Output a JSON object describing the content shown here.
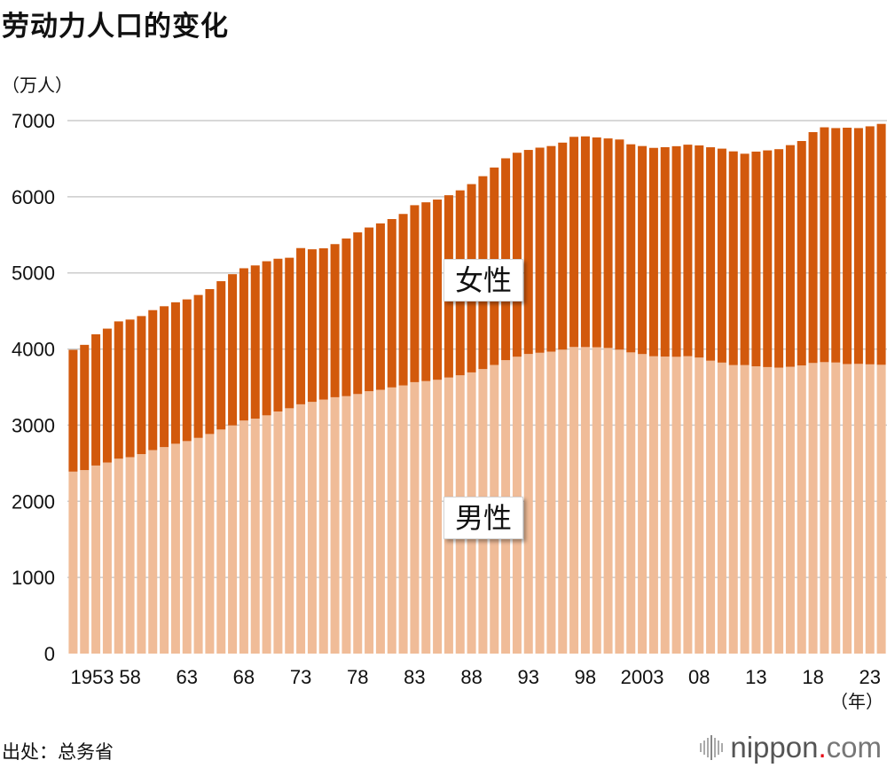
{
  "title": "劳动力人口的变化",
  "unit": "（万人）",
  "year_unit": "（年）",
  "source": "出处：总务省",
  "logo": {
    "main": "nippon",
    "dot": ".",
    "suffix": "com"
  },
  "colors": {
    "women": "#d2590c",
    "men": "#f0bc98",
    "grid": "#cccccc"
  },
  "chart_data": {
    "type": "bar",
    "stacked": true,
    "title": "劳动力人口的变化",
    "ylabel": "（万人）",
    "xlabel": "（年）",
    "ylim": [
      0,
      7000
    ],
    "yticks": [
      0,
      1000,
      2000,
      3000,
      4000,
      5000,
      6000,
      7000
    ],
    "xtick_labels": [
      "1953",
      "58",
      "63",
      "68",
      "73",
      "78",
      "83",
      "88",
      "93",
      "98",
      "2003",
      "08",
      "13",
      "18",
      "23"
    ],
    "grid": true,
    "x": [
      1953,
      1954,
      1955,
      1956,
      1957,
      1958,
      1959,
      1960,
      1961,
      1962,
      1963,
      1964,
      1965,
      1966,
      1967,
      1968,
      1969,
      1970,
      1971,
      1972,
      1973,
      1974,
      1975,
      1976,
      1977,
      1978,
      1979,
      1980,
      1981,
      1982,
      1983,
      1984,
      1985,
      1986,
      1987,
      1988,
      1989,
      1990,
      1991,
      1992,
      1993,
      1994,
      1995,
      1996,
      1997,
      1998,
      1999,
      2000,
      2001,
      2002,
      2003,
      2004,
      2005,
      2006,
      2007,
      2008,
      2009,
      2010,
      2011,
      2012,
      2013,
      2014,
      2015,
      2016,
      2017,
      2018,
      2019,
      2020,
      2021,
      2022,
      2023,
      2024
    ],
    "series": [
      {
        "name": "男性",
        "values": [
          2390,
          2410,
          2470,
          2510,
          2560,
          2580,
          2620,
          2673,
          2712,
          2756,
          2791,
          2833,
          2884,
          2943,
          2997,
          3061,
          3086,
          3129,
          3180,
          3222,
          3274,
          3306,
          3336,
          3367,
          3381,
          3409,
          3446,
          3465,
          3496,
          3522,
          3565,
          3579,
          3596,
          3626,
          3655,
          3693,
          3737,
          3791,
          3854,
          3899,
          3935,
          3951,
          3966,
          3992,
          4027,
          4026,
          4024,
          4014,
          3992,
          3956,
          3934,
          3905,
          3901,
          3898,
          3906,
          3888,
          3847,
          3822,
          3789,
          3789,
          3773,
          3763,
          3756,
          3767,
          3784,
          3817,
          3828,
          3823,
          3803,
          3805,
          3799,
          3793
        ]
      },
      {
        "name": "女性",
        "values": [
          1600,
          1645,
          1724,
          1758,
          1803,
          1807,
          1813,
          1838,
          1850,
          1858,
          1861,
          1877,
          1903,
          1948,
          1986,
          2000,
          2012,
          2024,
          2006,
          1977,
          2052,
          2004,
          1987,
          2011,
          2071,
          2123,
          2150,
          2185,
          2211,
          2252,
          2324,
          2348,
          2367,
          2394,
          2429,
          2473,
          2533,
          2593,
          2651,
          2679,
          2680,
          2694,
          2700,
          2719,
          2760,
          2767,
          2755,
          2752,
          2760,
          2733,
          2732,
          2737,
          2750,
          2766,
          2778,
          2786,
          2803,
          2810,
          2807,
          2776,
          2820,
          2846,
          2869,
          2911,
          2948,
          3032,
          3084,
          3079,
          3104,
          3097,
          3126,
          3164
        ]
      }
    ]
  }
}
